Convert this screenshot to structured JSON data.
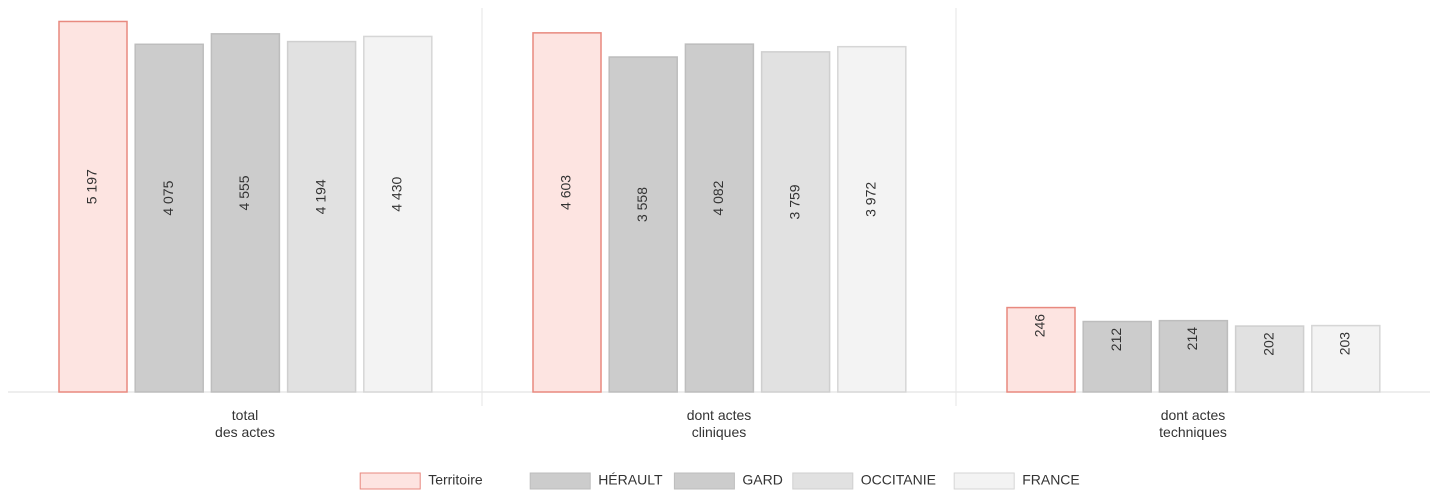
{
  "chart_data": {
    "type": "bar",
    "log_scale": true,
    "categories": [
      "total\ndes actes",
      "dont actes\ncliniques",
      "dont actes\ntechniques"
    ],
    "ylim": [
      100,
      6000
    ],
    "series": [
      {
        "name": "Territoire",
        "color": "#fde4e1",
        "stroke": "#e8897f",
        "values": [
          5197,
          4603,
          246
        ],
        "value_labels": [
          "5 197",
          "4 603",
          "246"
        ]
      },
      {
        "name": "HÉRAULT",
        "color": "#cccccc",
        "stroke": "#bdbdbd",
        "values": [
          4075,
          3558,
          212
        ],
        "value_labels": [
          "4 075",
          "3 558",
          "212"
        ]
      },
      {
        "name": "GARD",
        "color": "#cccccc",
        "stroke": "#bdbdbd",
        "values": [
          4555,
          4082,
          214
        ],
        "value_labels": [
          "4 555",
          "4 082",
          "214"
        ]
      },
      {
        "name": "OCCITANIE",
        "color": "#e1e1e1",
        "stroke": "#cfcfcf",
        "values": [
          4194,
          3759,
          202
        ],
        "value_labels": [
          "4 194",
          "3 759",
          "202"
        ]
      },
      {
        "name": "FRANCE",
        "color": "#f3f3f3",
        "stroke": "#d6d6d6",
        "values": [
          4430,
          3972,
          203
        ],
        "value_labels": [
          "4 430",
          "3 972",
          "203"
        ]
      }
    ],
    "legend": "bottom"
  }
}
